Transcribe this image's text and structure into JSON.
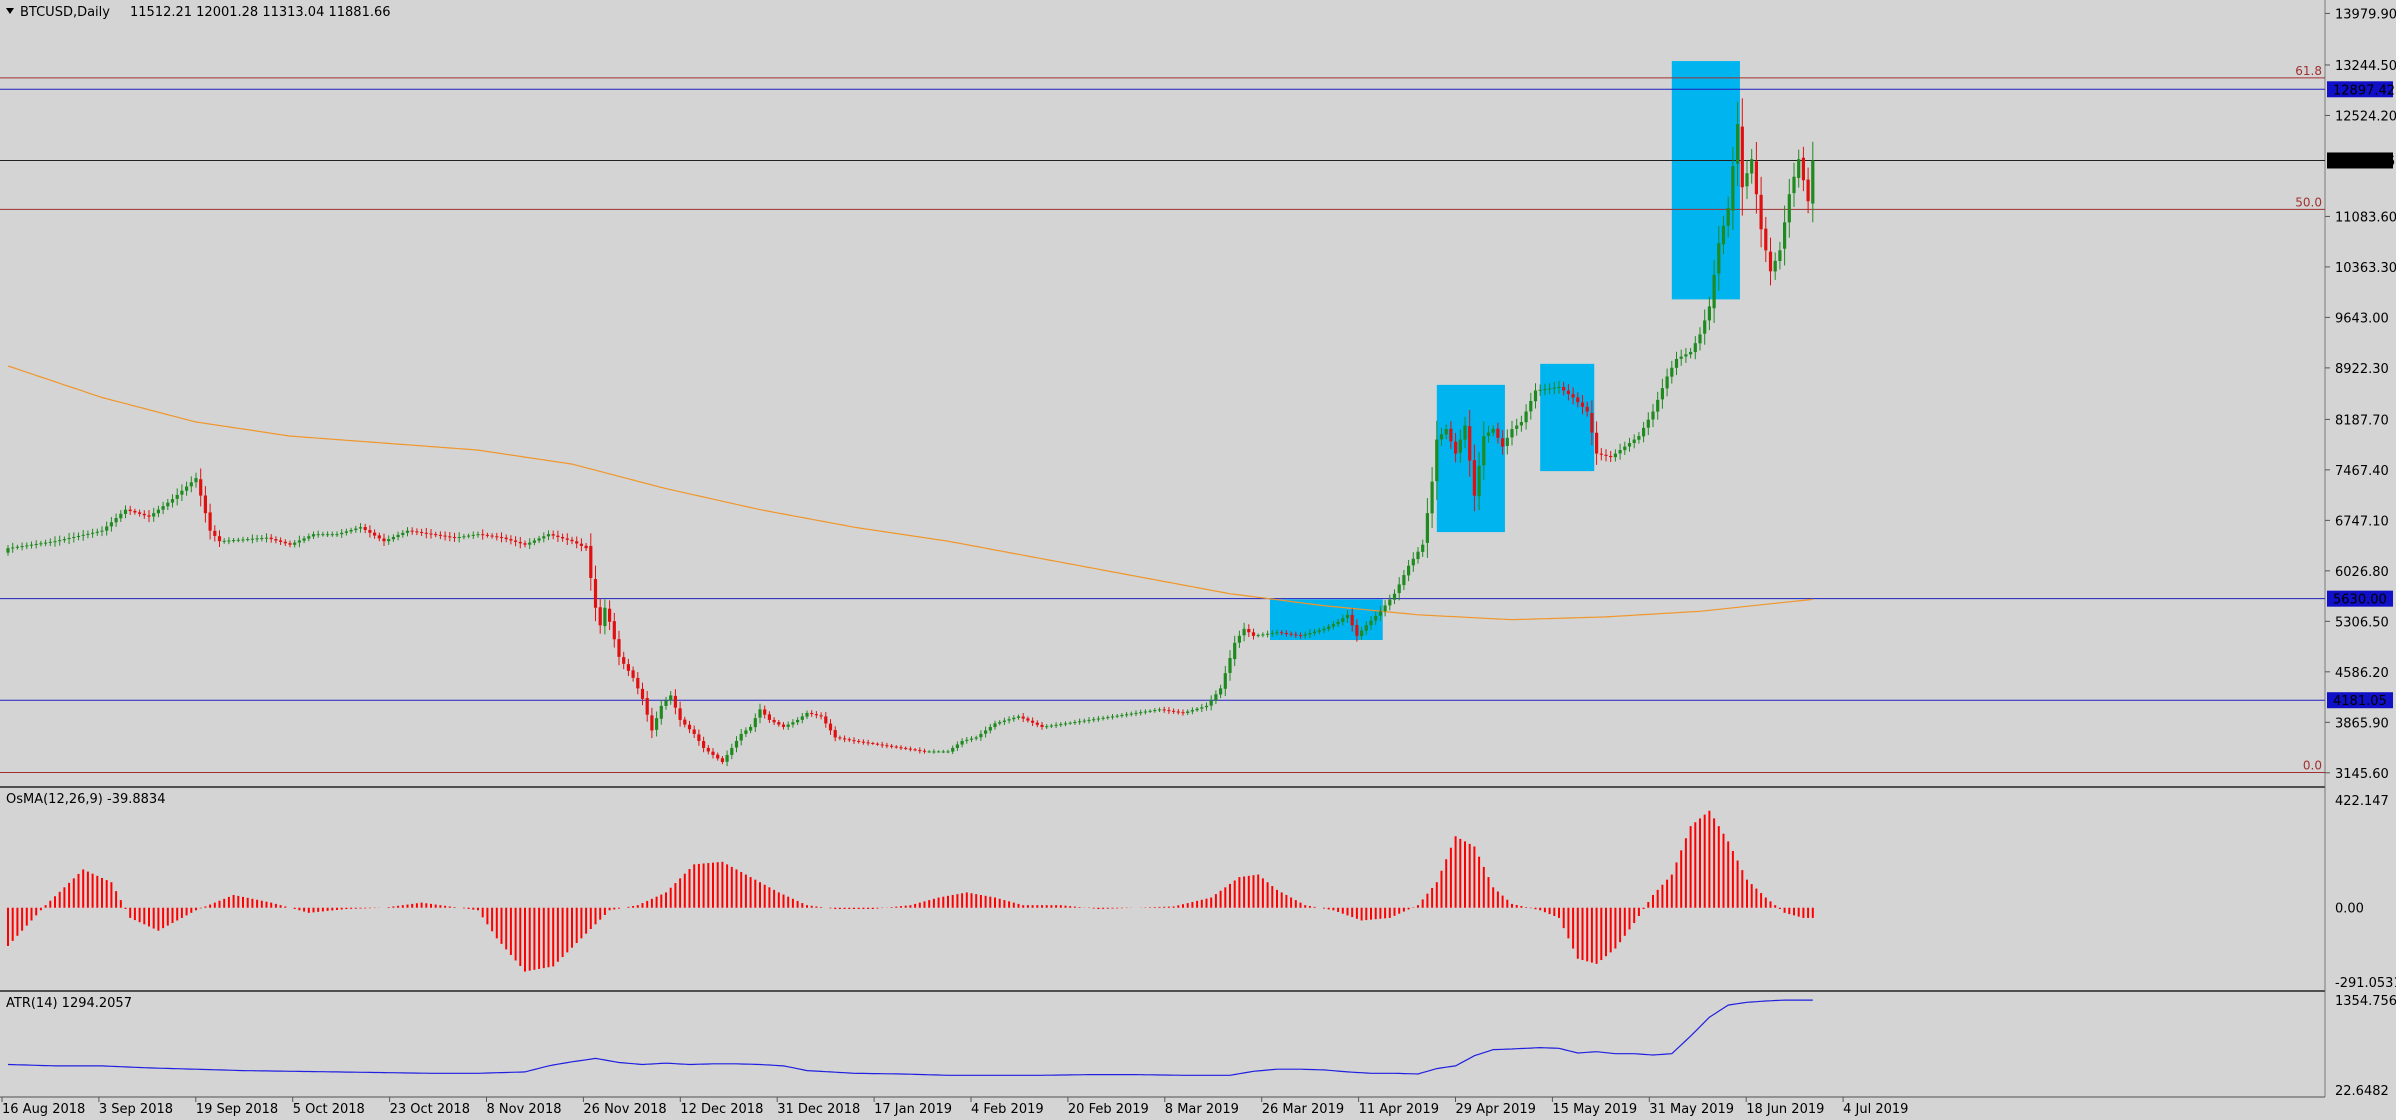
{
  "header": {
    "symbol": "BTCUSD,Daily",
    "ohlc": "11512.21 12001.28 11313.04 11881.66"
  },
  "colors": {
    "background": "#d4d4d4",
    "bull": "#1f8a1f",
    "bear": "#e01010",
    "ma": "#f0962a",
    "support_line": "#2020c0",
    "fib_line": "#a03030",
    "box": "#00b4f0",
    "osma": "#ff0000",
    "atr": "#2020e0"
  },
  "price_axis": {
    "ticks": [
      "13979.90",
      "13244.50",
      "12524.20",
      "11083.60",
      "10363.30",
      "9643.00",
      "8922.30",
      "8187.70",
      "7467.40",
      "6747.10",
      "6026.80",
      "5306.50",
      "4586.20",
      "3865.90",
      "3145.60"
    ],
    "badges": [
      {
        "label": "12897.42",
        "value": 12897.42,
        "style": "blue"
      },
      {
        "label": "11881.66",
        "value": 11881.66,
        "style": "black"
      },
      {
        "label": "5630.00",
        "value": 5630.0,
        "style": "blue"
      },
      {
        "label": "4181.05",
        "value": 4181.05,
        "style": "blue"
      }
    ]
  },
  "fib_levels": [
    {
      "label": "61.8",
      "value": 13060
    },
    {
      "label": "50.0",
      "value": 11185
    },
    {
      "label": "0.0",
      "value": 3150
    }
  ],
  "horizontal_lines": [
    {
      "value": 12897.42,
      "kind": "support"
    },
    {
      "value": 11881.66,
      "kind": "current"
    },
    {
      "value": 5630.0,
      "kind": "support"
    },
    {
      "value": 4181.05,
      "kind": "support"
    }
  ],
  "osma_panel": {
    "title": "OsMA(12,26,9) -39.8834",
    "ticks": [
      "422.147",
      "0.00",
      "-291.0531"
    ]
  },
  "atr_panel": {
    "title": "ATR(14) 1294.2057",
    "ticks": [
      "1354.7561",
      "22.6482"
    ]
  },
  "x_axis": {
    "ticks": [
      "16 Aug 2018",
      "3 Sep 2018",
      "19 Sep 2018",
      "5 Oct 2018",
      "23 Oct 2018",
      "8 Nov 2018",
      "26 Nov 2018",
      "12 Dec 2018",
      "31 Dec 2018",
      "17 Jan 2019",
      "4 Feb 2019",
      "20 Feb 2019",
      "8 Mar 2019",
      "26 Mar 2019",
      "11 Apr 2019",
      "29 Apr 2019",
      "15 May 2019",
      "31 May 2019",
      "18 Jun 2019",
      "4 Jul 2019"
    ]
  },
  "chart_data": {
    "type": "candlestick",
    "ylim": [
      3000,
      14100
    ],
    "close_path": [
      [
        0,
        6350
      ],
      [
        10,
        6450
      ],
      [
        20,
        6600
      ],
      [
        25,
        6900
      ],
      [
        30,
        6800
      ],
      [
        35,
        7050
      ],
      [
        40,
        7350
      ],
      [
        43,
        6600
      ],
      [
        45,
        6450
      ],
      [
        55,
        6500
      ],
      [
        60,
        6400
      ],
      [
        65,
        6550
      ],
      [
        70,
        6550
      ],
      [
        75,
        6650
      ],
      [
        80,
        6450
      ],
      [
        85,
        6600
      ],
      [
        90,
        6550
      ],
      [
        95,
        6500
      ],
      [
        100,
        6550
      ],
      [
        105,
        6500
      ],
      [
        110,
        6400
      ],
      [
        115,
        6550
      ],
      [
        120,
        6450
      ],
      [
        123,
        6350
      ],
      [
        125,
        5500
      ],
      [
        126,
        5250
      ],
      [
        127,
        5500
      ],
      [
        128,
        5300
      ],
      [
        130,
        4800
      ],
      [
        133,
        4500
      ],
      [
        135,
        4200
      ],
      [
        137,
        3750
      ],
      [
        139,
        4100
      ],
      [
        141,
        4250
      ],
      [
        143,
        3900
      ],
      [
        146,
        3700
      ],
      [
        148,
        3500
      ],
      [
        150,
        3400
      ],
      [
        152,
        3300
      ],
      [
        154,
        3500
      ],
      [
        156,
        3700
      ],
      [
        158,
        3800
      ],
      [
        160,
        4050
      ],
      [
        162,
        3900
      ],
      [
        165,
        3800
      ],
      [
        168,
        3900
      ],
      [
        170,
        4000
      ],
      [
        173,
        3950
      ],
      [
        176,
        3650
      ],
      [
        180,
        3600
      ],
      [
        185,
        3550
      ],
      [
        190,
        3500
      ],
      [
        195,
        3450
      ],
      [
        200,
        3450
      ],
      [
        203,
        3600
      ],
      [
        206,
        3650
      ],
      [
        210,
        3850
      ],
      [
        215,
        3950
      ],
      [
        220,
        3800
      ],
      [
        225,
        3850
      ],
      [
        230,
        3900
      ],
      [
        235,
        3950
      ],
      [
        240,
        4000
      ],
      [
        245,
        4050
      ],
      [
        250,
        4000
      ],
      [
        255,
        4100
      ],
      [
        258,
        4350
      ],
      [
        261,
        5000
      ],
      [
        263,
        5200
      ],
      [
        265,
        5100
      ],
      [
        270,
        5150
      ],
      [
        275,
        5100
      ],
      [
        280,
        5200
      ],
      [
        283,
        5300
      ],
      [
        285,
        5400
      ],
      [
        287,
        5100
      ],
      [
        289,
        5250
      ],
      [
        292,
        5450
      ],
      [
        295,
        5700
      ],
      [
        298,
        6100
      ],
      [
        301,
        6400
      ],
      [
        303,
        7300
      ],
      [
        304,
        7900
      ],
      [
        306,
        8050
      ],
      [
        308,
        7700
      ],
      [
        310,
        8100
      ],
      [
        312,
        7100
      ],
      [
        314,
        7950
      ],
      [
        316,
        8050
      ],
      [
        318,
        7800
      ],
      [
        320,
        8050
      ],
      [
        322,
        8150
      ],
      [
        325,
        8600
      ],
      [
        330,
        8650
      ],
      [
        333,
        8500
      ],
      [
        336,
        8300
      ],
      [
        338,
        7700
      ],
      [
        341,
        7650
      ],
      [
        344,
        7800
      ],
      [
        347,
        7950
      ],
      [
        350,
        8300
      ],
      [
        353,
        8800
      ],
      [
        355,
        9050
      ],
      [
        358,
        9150
      ],
      [
        360,
        9400
      ],
      [
        362,
        9800
      ],
      [
        364,
        10700
      ],
      [
        366,
        11200
      ],
      [
        368,
        12400
      ],
      [
        369,
        11500
      ],
      [
        371,
        11900
      ],
      [
        373,
        10900
      ],
      [
        375,
        10300
      ],
      [
        377,
        10600
      ],
      [
        379,
        11400
      ],
      [
        381,
        11900
      ],
      [
        383,
        11300
      ],
      [
        384,
        11881.66
      ]
    ],
    "ma_path": [
      [
        0,
        8950
      ],
      [
        20,
        8500
      ],
      [
        40,
        8150
      ],
      [
        60,
        7950
      ],
      [
        80,
        7850
      ],
      [
        100,
        7750
      ],
      [
        120,
        7550
      ],
      [
        140,
        7200
      ],
      [
        160,
        6900
      ],
      [
        180,
        6650
      ],
      [
        200,
        6450
      ],
      [
        220,
        6200
      ],
      [
        240,
        5950
      ],
      [
        260,
        5700
      ],
      [
        280,
        5530
      ],
      [
        300,
        5400
      ],
      [
        320,
        5330
      ],
      [
        340,
        5370
      ],
      [
        360,
        5450
      ],
      [
        384,
        5620
      ]
    ],
    "boxes": [
      {
        "i0": 268.5,
        "i1": 292.5,
        "hi": 5620,
        "lo": 5040
      },
      {
        "i0": 304,
        "i1": 318.5,
        "hi": 8680,
        "lo": 6580
      },
      {
        "i0": 326,
        "i1": 337.5,
        "hi": 8980,
        "lo": 7450
      },
      {
        "i0": 354,
        "i1": 368.5,
        "hi": 13300,
        "lo": 9900
      }
    ],
    "osma": {
      "ylim": [
        -291.0531,
        422.147
      ],
      "path": [
        [
          0,
          -150
        ],
        [
          8,
          10
        ],
        [
          16,
          150
        ],
        [
          22,
          100
        ],
        [
          26,
          -40
        ],
        [
          32,
          -90
        ],
        [
          40,
          -10
        ],
        [
          48,
          50
        ],
        [
          56,
          20
        ],
        [
          64,
          -20
        ],
        [
          72,
          -5
        ],
        [
          80,
          0
        ],
        [
          88,
          20
        ],
        [
          100,
          -10
        ],
        [
          104,
          -120
        ],
        [
          110,
          -250
        ],
        [
          116,
          -230
        ],
        [
          122,
          -120
        ],
        [
          128,
          -10
        ],
        [
          134,
          10
        ],
        [
          140,
          60
        ],
        [
          146,
          170
        ],
        [
          152,
          180
        ],
        [
          158,
          120
        ],
        [
          164,
          60
        ],
        [
          170,
          10
        ],
        [
          176,
          -5
        ],
        [
          184,
          -5
        ],
        [
          192,
          10
        ],
        [
          198,
          40
        ],
        [
          204,
          60
        ],
        [
          210,
          40
        ],
        [
          216,
          10
        ],
        [
          224,
          10
        ],
        [
          232,
          -5
        ],
        [
          240,
          0
        ],
        [
          248,
          5
        ],
        [
          256,
          40
        ],
        [
          262,
          120
        ],
        [
          266,
          130
        ],
        [
          270,
          70
        ],
        [
          276,
          10
        ],
        [
          282,
          -10
        ],
        [
          288,
          -50
        ],
        [
          294,
          -40
        ],
        [
          300,
          10
        ],
        [
          304,
          100
        ],
        [
          308,
          280
        ],
        [
          312,
          240
        ],
        [
          316,
          80
        ],
        [
          320,
          15
        ],
        [
          326,
          -10
        ],
        [
          330,
          -40
        ],
        [
          334,
          -200
        ],
        [
          338,
          -220
        ],
        [
          342,
          -160
        ],
        [
          346,
          -60
        ],
        [
          350,
          50
        ],
        [
          354,
          130
        ],
        [
          358,
          320
        ],
        [
          362,
          380
        ],
        [
          366,
          260
        ],
        [
          370,
          110
        ],
        [
          374,
          40
        ],
        [
          378,
          -20
        ],
        [
          382,
          -40
        ],
        [
          384,
          -40
        ]
      ]
    },
    "atr": {
      "ylim": [
        22.6482,
        1354.7561
      ],
      "path": [
        [
          0,
          400
        ],
        [
          10,
          380
        ],
        [
          20,
          380
        ],
        [
          30,
          350
        ],
        [
          40,
          330
        ],
        [
          50,
          310
        ],
        [
          60,
          300
        ],
        [
          70,
          290
        ],
        [
          80,
          280
        ],
        [
          90,
          270
        ],
        [
          100,
          270
        ],
        [
          110,
          290
        ],
        [
          115,
          380
        ],
        [
          120,
          440
        ],
        [
          125,
          490
        ],
        [
          130,
          430
        ],
        [
          135,
          400
        ],
        [
          140,
          420
        ],
        [
          145,
          400
        ],
        [
          150,
          410
        ],
        [
          155,
          410
        ],
        [
          160,
          400
        ],
        [
          165,
          380
        ],
        [
          170,
          310
        ],
        [
          180,
          270
        ],
        [
          190,
          260
        ],
        [
          200,
          240
        ],
        [
          210,
          240
        ],
        [
          220,
          240
        ],
        [
          230,
          250
        ],
        [
          240,
          250
        ],
        [
          250,
          240
        ],
        [
          260,
          240
        ],
        [
          265,
          300
        ],
        [
          270,
          330
        ],
        [
          275,
          330
        ],
        [
          280,
          320
        ],
        [
          285,
          290
        ],
        [
          290,
          270
        ],
        [
          295,
          270
        ],
        [
          300,
          260
        ],
        [
          304,
          340
        ],
        [
          308,
          380
        ],
        [
          312,
          530
        ],
        [
          316,
          620
        ],
        [
          320,
          630
        ],
        [
          326,
          650
        ],
        [
          330,
          640
        ],
        [
          334,
          570
        ],
        [
          338,
          590
        ],
        [
          342,
          560
        ],
        [
          346,
          560
        ],
        [
          350,
          540
        ],
        [
          354,
          560
        ],
        [
          358,
          820
        ],
        [
          362,
          1100
        ],
        [
          366,
          1280
        ],
        [
          370,
          1320
        ],
        [
          374,
          1340
        ],
        [
          378,
          1354
        ]
      ]
    }
  }
}
